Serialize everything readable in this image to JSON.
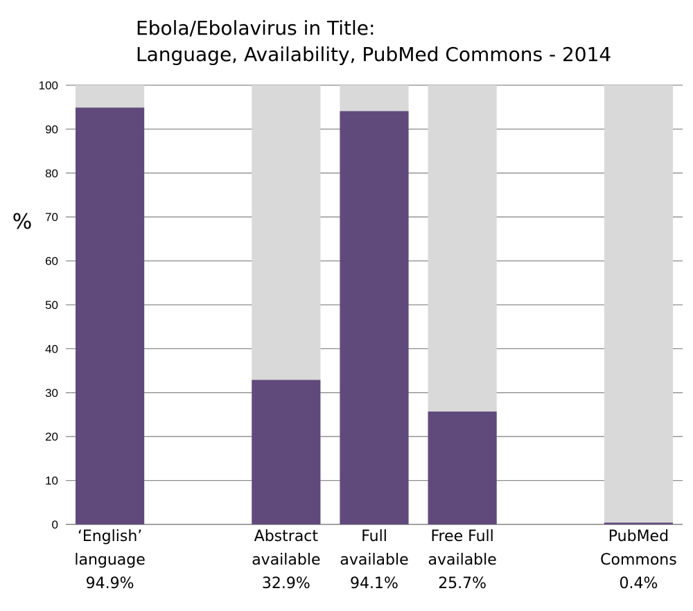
{
  "chart_data": {
    "type": "bar",
    "title_lines": [
      "Ebola/Ebolavirus in Title:",
      "Language, Availability, PubMed Commons - 2014"
    ],
    "ylabel": "%",
    "ylim": [
      0,
      100
    ],
    "yticks": [
      "0",
      "10",
      "20",
      "30",
      "40",
      "50",
      "60",
      "70",
      "80",
      "90",
      "100"
    ],
    "grid": true,
    "categories": [
      {
        "lines": [
          "‘English’",
          "language",
          "94.9%"
        ],
        "value": 94.9
      },
      {
        "lines": [
          "Abstract",
          "available",
          "32.9%"
        ],
        "value": 32.9
      },
      {
        "lines": [
          "Full",
          "available",
          "94.1%"
        ],
        "value": 94.1
      },
      {
        "lines": [
          "Free Full",
          "available",
          "25.7%"
        ],
        "value": 25.7
      },
      {
        "lines": [
          "PubMed",
          "Commons",
          "0.4%"
        ],
        "value": 0.4
      }
    ],
    "colors": {
      "value": "#604a7b",
      "remainder": "#d9d9d9",
      "grid": "#8c8c8c"
    }
  }
}
